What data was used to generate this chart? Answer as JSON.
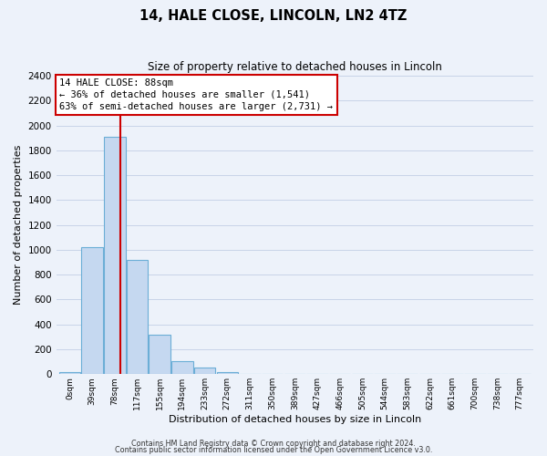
{
  "title1": "14, HALE CLOSE, LINCOLN, LN2 4TZ",
  "title2": "Size of property relative to detached houses in Lincoln",
  "xlabel": "Distribution of detached houses by size in Lincoln",
  "ylabel": "Number of detached properties",
  "bar_labels": [
    "0sqm",
    "39sqm",
    "78sqm",
    "117sqm",
    "155sqm",
    "194sqm",
    "233sqm",
    "272sqm",
    "311sqm",
    "350sqm",
    "389sqm",
    "427sqm",
    "466sqm",
    "505sqm",
    "544sqm",
    "583sqm",
    "622sqm",
    "661sqm",
    "700sqm",
    "738sqm",
    "777sqm"
  ],
  "bar_values": [
    20,
    1020,
    1910,
    920,
    320,
    105,
    50,
    20,
    5,
    0,
    0,
    0,
    0,
    0,
    0,
    0,
    0,
    0,
    0,
    0,
    0
  ],
  "bar_color": "#c5d8f0",
  "bar_edge_color": "#6baed6",
  "grid_color": "#c8d4e8",
  "background_color": "#edf2fa",
  "ylim": [
    0,
    2400
  ],
  "yticks": [
    0,
    200,
    400,
    600,
    800,
    1000,
    1200,
    1400,
    1600,
    1800,
    2000,
    2200,
    2400
  ],
  "property_line_x": 2.26,
  "annotation_line1": "14 HALE CLOSE: 88sqm",
  "annotation_line2": "← 36% of detached houses are smaller (1,541)",
  "annotation_line3": "63% of semi-detached houses are larger (2,731) →",
  "footer1": "Contains HM Land Registry data © Crown copyright and database right 2024.",
  "footer2": "Contains public sector information licensed under the Open Government Licence v3.0."
}
